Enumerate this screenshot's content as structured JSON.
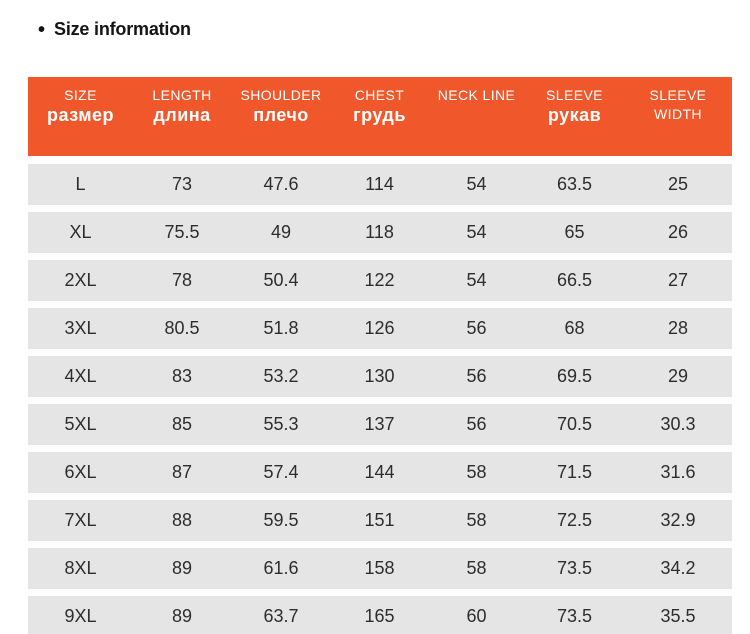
{
  "title": {
    "bullet": "•",
    "text": "Size information"
  },
  "colors": {
    "page_bg": "#ffffff",
    "title_color": "#141414",
    "header_bg": "#f0582b",
    "header_text": "#ffffff",
    "row_bg": "#e5e5e5",
    "row_text": "#2d2d2d"
  },
  "chart_data": {
    "type": "table",
    "title": "Size information",
    "columns": [
      {
        "en": "SIZE",
        "ru": "размер"
      },
      {
        "en": "LENGTH",
        "ru": "длина"
      },
      {
        "en": "SHOULDER",
        "ru": "плечо"
      },
      {
        "en": "CHEST",
        "ru": "грудь"
      },
      {
        "en": "NECK LINE",
        "ru": ""
      },
      {
        "en": "SLEEVE",
        "ru": "рукав"
      },
      {
        "en": "SLEEVE WIDTH",
        "ru": ""
      }
    ],
    "rows": [
      [
        "L",
        "73",
        "47.6",
        "114",
        "54",
        "63.5",
        "25"
      ],
      [
        "XL",
        "75.5",
        "49",
        "118",
        "54",
        "65",
        "26"
      ],
      [
        "2XL",
        "78",
        "50.4",
        "122",
        "54",
        "66.5",
        "27"
      ],
      [
        "3XL",
        "80.5",
        "51.8",
        "126",
        "56",
        "68",
        "28"
      ],
      [
        "4XL",
        "83",
        "53.2",
        "130",
        "56",
        "69.5",
        "29"
      ],
      [
        "5XL",
        "85",
        "55.3",
        "137",
        "56",
        "70.5",
        "30.3"
      ],
      [
        "6XL",
        "87",
        "57.4",
        "144",
        "58",
        "71.5",
        "31.6"
      ],
      [
        "7XL",
        "88",
        "59.5",
        "151",
        "58",
        "72.5",
        "32.9"
      ],
      [
        "8XL",
        "89",
        "61.6",
        "158",
        "58",
        "73.5",
        "34.2"
      ],
      [
        "9XL",
        "89",
        "63.7",
        "165",
        "60",
        "73.5",
        "35.5"
      ]
    ]
  }
}
